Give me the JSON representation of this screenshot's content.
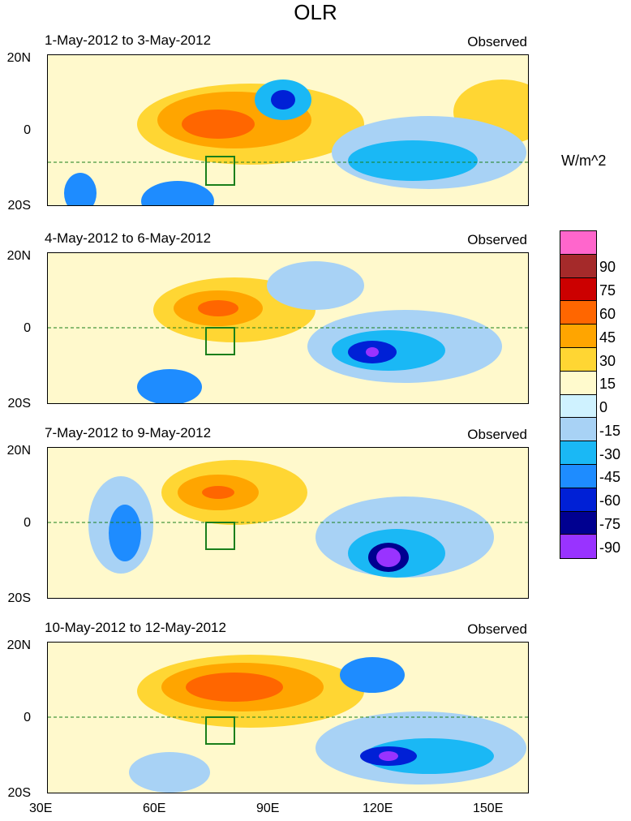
{
  "title": "OLR",
  "panels": [
    {
      "title": "1-May-2012 to 3-May-2012",
      "status": "Observed"
    },
    {
      "title": "4-May-2012 to 6-May-2012",
      "status": "Observed"
    },
    {
      "title": "7-May-2012 to 9-May-2012",
      "status": "Observed"
    },
    {
      "title": "10-May-2012 to 12-May-2012",
      "status": "Observed"
    }
  ],
  "axes": {
    "y_labels": [
      "20N",
      "0",
      "20S"
    ],
    "x_labels": [
      "30E",
      "60E",
      "90E",
      "120E",
      "150E"
    ],
    "lon_range": [
      30,
      160
    ],
    "lat_range": [
      -20,
      20
    ]
  },
  "colorbar": {
    "units": "W/m^2",
    "levels": [
      "90",
      "75",
      "60",
      "45",
      "30",
      "15",
      "0",
      "-15",
      "-30",
      "-45",
      "-60",
      "-75",
      "-90"
    ],
    "colors": [
      "#ff66cc",
      "#a52a2a",
      "#cc0000",
      "#ff6600",
      "#ffa500",
      "#ffd633",
      "#fffacd",
      "#cff2ff",
      "#a8d2f5",
      "#1ab8f5",
      "#1e8cff",
      "#0020d6",
      "#000090",
      "#9933ff"
    ]
  },
  "colors": {
    "coast": "#1a7f1a",
    "box": "#1a7f1a"
  }
}
